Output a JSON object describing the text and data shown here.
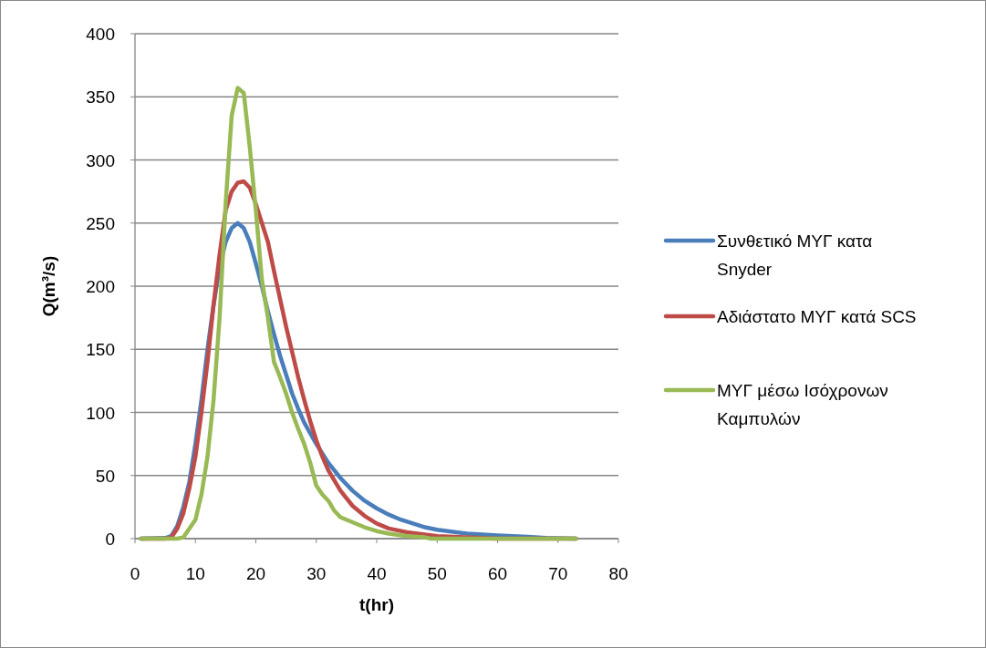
{
  "chart_data": {
    "type": "line",
    "xlabel": "t(hr)",
    "ylabel": "Q(m³/s)",
    "xlim": [
      0,
      80
    ],
    "xticks": [
      0,
      10,
      20,
      30,
      40,
      50,
      60,
      70,
      80
    ],
    "ylim": [
      0,
      400
    ],
    "yticks": [
      0,
      50,
      100,
      150,
      200,
      250,
      300,
      350,
      400
    ],
    "grid": "y",
    "legend": "right",
    "marker": "none",
    "line_style": "solid",
    "series": [
      {
        "name": "Συνθετικό ΜΥΓ κατα Snyder",
        "color": "#4a7ebb",
        "x": [
          1,
          5,
          6,
          7,
          8,
          9,
          10,
          11,
          12,
          13,
          14,
          15,
          16,
          17,
          18,
          19,
          20,
          21,
          22,
          23,
          24,
          25,
          26,
          27,
          28,
          30,
          32,
          34,
          36,
          38,
          40,
          42,
          44,
          46,
          48,
          50,
          55,
          60,
          65,
          68,
          73
        ],
        "values": [
          0,
          0.5,
          2,
          10,
          25,
          45,
          75,
          110,
          150,
          185,
          215,
          235,
          246,
          250,
          246,
          235,
          218,
          200,
          180,
          162,
          145,
          130,
          115,
          103,
          92,
          75,
          60,
          48,
          38,
          30,
          24,
          19,
          15,
          12,
          9,
          7,
          4,
          2.5,
          1.5,
          0.5,
          0
        ]
      },
      {
        "name": "Αδιάστατο ΜΥΓ κατά SCS",
        "color": "#be4b48",
        "x": [
          1,
          5,
          6,
          7,
          8,
          9,
          10,
          11,
          12,
          13,
          14,
          15,
          16,
          17,
          18,
          19,
          20,
          21,
          22,
          23,
          24,
          25,
          26,
          27,
          28,
          29,
          30,
          31,
          32,
          34,
          36,
          38,
          40,
          42,
          45,
          50,
          55,
          60,
          73
        ],
        "values": [
          0,
          0,
          1,
          8,
          20,
          40,
          65,
          100,
          140,
          185,
          225,
          260,
          275,
          282,
          283,
          278,
          265,
          250,
          235,
          212,
          190,
          168,
          148,
          128,
          110,
          93,
          78,
          65,
          54,
          38,
          26,
          18,
          12,
          8,
          5,
          2,
          1,
          0,
          0
        ]
      },
      {
        "name": "ΜΥΓ μέσω Ισόχρονων Καμπυλών",
        "color": "#98b954",
        "x": [
          1,
          7,
          8,
          9,
          10,
          11,
          12,
          13,
          14,
          15,
          16,
          17,
          18,
          19,
          20,
          21,
          22,
          23,
          24,
          25,
          26,
          27,
          28,
          29,
          30,
          31,
          32,
          33,
          34,
          35,
          36,
          38,
          40,
          42,
          45,
          48,
          49,
          73
        ],
        "values": [
          0,
          0,
          1,
          8,
          15,
          35,
          65,
          110,
          175,
          265,
          335,
          357,
          353,
          310,
          260,
          205,
          175,
          140,
          128,
          115,
          100,
          87,
          75,
          60,
          42,
          35,
          30,
          22,
          17,
          15,
          13,
          9,
          6,
          4,
          2,
          1,
          0,
          0
        ]
      }
    ]
  }
}
